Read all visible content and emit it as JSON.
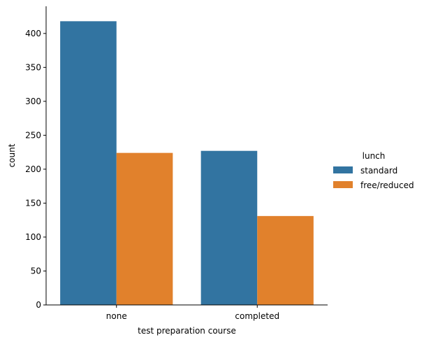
{
  "chart_data": {
    "type": "bar",
    "categories": [
      "none",
      "completed"
    ],
    "series": [
      {
        "name": "standard",
        "values": [
          418,
          227
        ],
        "color": "#3274a1"
      },
      {
        "name": "free/reduced",
        "values": [
          224,
          131
        ],
        "color": "#e1812c"
      }
    ],
    "xlabel": "test preparation course",
    "ylabel": "count",
    "ylim": [
      0,
      440
    ],
    "yticks": [
      0,
      50,
      100,
      150,
      200,
      250,
      300,
      350,
      400
    ],
    "legend": {
      "title": "lunch",
      "placement": "right"
    },
    "grid": false
  }
}
